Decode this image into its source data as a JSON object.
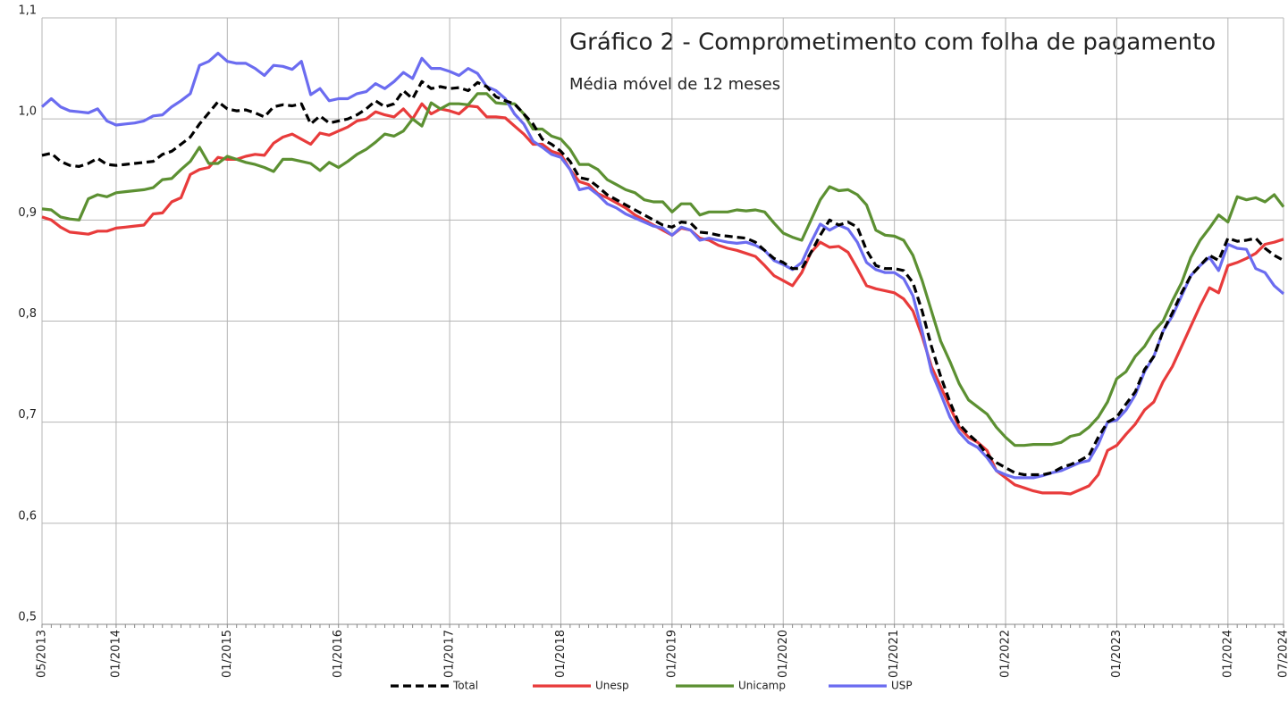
{
  "chart_data": {
    "type": "line",
    "title": "Gráfico 2 - Comprometimento com folha de pagamento",
    "subtitle": "Média móvel de 12 meses",
    "categories": [
      "05/2013",
      null,
      null,
      null,
      null,
      null,
      null,
      null,
      "01/2014",
      null,
      null,
      null,
      null,
      null,
      null,
      null,
      null,
      null,
      null,
      null,
      "01/2015",
      null,
      null,
      null,
      null,
      null,
      null,
      null,
      null,
      null,
      null,
      null,
      "01/2016",
      null,
      null,
      null,
      null,
      null,
      null,
      null,
      null,
      null,
      null,
      null,
      "01/2017",
      null,
      null,
      null,
      null,
      null,
      null,
      null,
      null,
      null,
      null,
      null,
      "01/2018",
      null,
      null,
      null,
      null,
      null,
      null,
      null,
      null,
      null,
      null,
      null,
      "01/2019",
      null,
      null,
      null,
      null,
      null,
      null,
      null,
      null,
      null,
      null,
      null,
      "01/2020",
      null,
      null,
      null,
      null,
      null,
      null,
      null,
      null,
      null,
      null,
      null,
      "01/2021",
      null,
      null,
      null,
      null,
      null,
      null,
      null,
      null,
      null,
      null,
      null,
      "01/2022",
      null,
      null,
      null,
      null,
      null,
      null,
      null,
      null,
      null,
      null,
      null,
      "01/2023",
      null,
      null,
      null,
      null,
      null,
      null,
      null,
      null,
      null,
      null,
      null,
      "01/2024",
      null,
      null,
      null,
      null,
      null,
      "07/2024"
    ],
    "series": [
      {
        "name": "Total",
        "color": "#000000",
        "dashed": true,
        "values": [
          0.964,
          0.966,
          0.958,
          0.954,
          0.953,
          0.956,
          0.961,
          0.955,
          0.954,
          0.955,
          0.956,
          0.957,
          0.958,
          0.965,
          0.968,
          0.975,
          0.982,
          0.995,
          1.006,
          1.017,
          1.01,
          1.008,
          1.009,
          1.006,
          1.002,
          1.012,
          1.014,
          1.013,
          1.015,
          0.995,
          1.003,
          0.996,
          0.998,
          1.0,
          1.004,
          1.01,
          1.018,
          1.012,
          1.015,
          1.028,
          1.02,
          1.037,
          1.03,
          1.032,
          1.03,
          1.031,
          1.028,
          1.036,
          1.032,
          1.022,
          1.018,
          1.015,
          1.005,
          0.995,
          0.98,
          0.975,
          0.968,
          0.958,
          0.942,
          0.94,
          0.933,
          0.925,
          0.92,
          0.915,
          0.91,
          0.905,
          0.9,
          0.895,
          0.893,
          0.898,
          0.897,
          0.888,
          0.887,
          0.885,
          0.884,
          0.883,
          0.882,
          0.878,
          0.87,
          0.862,
          0.858,
          0.852,
          0.852,
          0.868,
          0.885,
          0.9,
          0.895,
          0.898,
          0.893,
          0.87,
          0.855,
          0.852,
          0.852,
          0.85,
          0.838,
          0.81,
          0.775,
          0.745,
          0.72,
          0.698,
          0.688,
          0.68,
          0.668,
          0.66,
          0.655,
          0.65,
          0.648,
          0.648,
          0.648,
          0.65,
          0.655,
          0.658,
          0.662,
          0.667,
          0.685,
          0.7,
          0.705,
          0.718,
          0.73,
          0.752,
          0.765,
          0.79,
          0.808,
          0.828,
          0.845,
          0.855,
          0.865,
          0.86,
          0.882,
          0.879,
          0.88,
          0.882,
          0.872,
          0.865,
          0.86
        ]
      },
      {
        "name": "Unesp",
        "color": "#e83b3b",
        "values": [
          0.903,
          0.9,
          0.893,
          0.888,
          0.887,
          0.886,
          0.889,
          0.889,
          0.892,
          0.893,
          0.894,
          0.895,
          0.906,
          0.907,
          0.918,
          0.922,
          0.945,
          0.95,
          0.952,
          0.962,
          0.96,
          0.96,
          0.963,
          0.965,
          0.964,
          0.976,
          0.982,
          0.985,
          0.98,
          0.975,
          0.986,
          0.984,
          0.988,
          0.992,
          0.998,
          1.0,
          1.007,
          1.004,
          1.002,
          1.01,
          1.0,
          1.015,
          1.005,
          1.01,
          1.008,
          1.005,
          1.013,
          1.012,
          1.002,
          1.002,
          1.001,
          0.993,
          0.985,
          0.975,
          0.975,
          0.968,
          0.965,
          0.95,
          0.938,
          0.935,
          0.926,
          0.922,
          0.917,
          0.912,
          0.905,
          0.9,
          0.895,
          0.89,
          0.885,
          0.892,
          0.89,
          0.882,
          0.88,
          0.875,
          0.872,
          0.87,
          0.867,
          0.864,
          0.855,
          0.845,
          0.84,
          0.835,
          0.848,
          0.868,
          0.878,
          0.873,
          0.874,
          0.868,
          0.852,
          0.835,
          0.832,
          0.83,
          0.828,
          0.822,
          0.81,
          0.785,
          0.755,
          0.735,
          0.715,
          0.695,
          0.685,
          0.68,
          0.672,
          0.652,
          0.645,
          0.638,
          0.635,
          0.632,
          0.63,
          0.63,
          0.63,
          0.629,
          0.633,
          0.637,
          0.648,
          0.672,
          0.677,
          0.688,
          0.698,
          0.712,
          0.72,
          0.74,
          0.755,
          0.775,
          0.795,
          0.815,
          0.833,
          0.828,
          0.855,
          0.858,
          0.862,
          0.867,
          0.876,
          0.878,
          0.881
        ]
      },
      {
        "name": "Unicamp",
        "color": "#5c9032",
        "values": [
          0.911,
          0.91,
          0.903,
          0.901,
          0.9,
          0.921,
          0.925,
          0.923,
          0.927,
          0.928,
          0.929,
          0.93,
          0.932,
          0.94,
          0.941,
          0.95,
          0.958,
          0.972,
          0.956,
          0.956,
          0.963,
          0.96,
          0.957,
          0.955,
          0.952,
          0.948,
          0.96,
          0.96,
          0.958,
          0.956,
          0.949,
          0.957,
          0.952,
          0.958,
          0.965,
          0.97,
          0.977,
          0.985,
          0.983,
          0.988,
          1.0,
          0.993,
          1.016,
          1.01,
          1.015,
          1.015,
          1.014,
          1.025,
          1.025,
          1.016,
          1.015,
          1.015,
          1.005,
          0.99,
          0.99,
          0.983,
          0.98,
          0.97,
          0.955,
          0.955,
          0.95,
          0.94,
          0.935,
          0.93,
          0.927,
          0.92,
          0.918,
          0.918,
          0.908,
          0.916,
          0.916,
          0.905,
          0.908,
          0.908,
          0.908,
          0.91,
          0.909,
          0.91,
          0.908,
          0.897,
          0.887,
          0.883,
          0.88,
          0.9,
          0.92,
          0.933,
          0.929,
          0.93,
          0.925,
          0.915,
          0.89,
          0.885,
          0.884,
          0.88,
          0.865,
          0.84,
          0.81,
          0.78,
          0.76,
          0.738,
          0.722,
          0.715,
          0.708,
          0.695,
          0.685,
          0.677,
          0.677,
          0.678,
          0.678,
          0.678,
          0.68,
          0.686,
          0.688,
          0.695,
          0.705,
          0.72,
          0.743,
          0.75,
          0.765,
          0.775,
          0.79,
          0.8,
          0.82,
          0.838,
          0.863,
          0.88,
          0.892,
          0.905,
          0.898,
          0.923,
          0.92,
          0.922,
          0.918,
          0.925,
          0.913
        ]
      },
      {
        "name": "USP",
        "color": "#6b6cf0",
        "values": [
          1.012,
          1.02,
          1.012,
          1.008,
          1.007,
          1.006,
          1.01,
          0.998,
          0.994,
          0.995,
          0.996,
          0.998,
          1.003,
          1.004,
          1.012,
          1.018,
          1.025,
          1.053,
          1.057,
          1.065,
          1.057,
          1.055,
          1.055,
          1.05,
          1.043,
          1.053,
          1.052,
          1.049,
          1.057,
          1.024,
          1.03,
          1.018,
          1.02,
          1.02,
          1.025,
          1.027,
          1.035,
          1.03,
          1.037,
          1.046,
          1.04,
          1.06,
          1.05,
          1.05,
          1.047,
          1.043,
          1.05,
          1.045,
          1.032,
          1.028,
          1.02,
          1.005,
          0.995,
          0.978,
          0.972,
          0.965,
          0.962,
          0.95,
          0.93,
          0.932,
          0.925,
          0.916,
          0.912,
          0.906,
          0.902,
          0.898,
          0.894,
          0.892,
          0.885,
          0.893,
          0.89,
          0.88,
          0.882,
          0.88,
          0.878,
          0.877,
          0.878,
          0.875,
          0.87,
          0.86,
          0.856,
          0.851,
          0.858,
          0.878,
          0.896,
          0.89,
          0.895,
          0.891,
          0.878,
          0.858,
          0.851,
          0.848,
          0.848,
          0.842,
          0.825,
          0.79,
          0.75,
          0.728,
          0.705,
          0.69,
          0.68,
          0.675,
          0.665,
          0.652,
          0.648,
          0.645,
          0.645,
          0.645,
          0.647,
          0.65,
          0.652,
          0.656,
          0.66,
          0.662,
          0.678,
          0.7,
          0.702,
          0.712,
          0.727,
          0.75,
          0.765,
          0.79,
          0.805,
          0.825,
          0.845,
          0.855,
          0.863,
          0.85,
          0.876,
          0.872,
          0.871,
          0.852,
          0.848,
          0.835,
          0.827
        ]
      }
    ],
    "ylim": [
      0.5,
      1.1
    ],
    "yticks": [
      {
        "value": 0.5,
        "label": "0,5"
      },
      {
        "value": 0.6,
        "label": "0,6"
      },
      {
        "value": 0.7,
        "label": "0,7"
      },
      {
        "value": 0.8,
        "label": "0,8"
      },
      {
        "value": 0.9,
        "label": "0,9"
      },
      {
        "value": 1.0,
        "label": "1,0"
      },
      {
        "value": 1.1,
        "label": "1,1"
      }
    ],
    "grid": true,
    "legend": "bottom"
  }
}
